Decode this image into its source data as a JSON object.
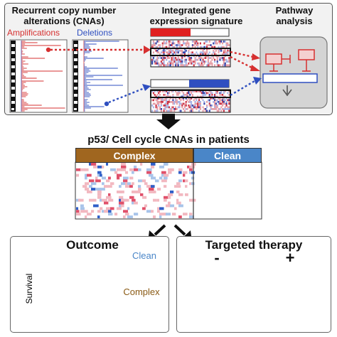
{
  "top": {
    "cna_title_line1": "Recurrent copy number",
    "cna_title_line2": "alterations (CNAs)",
    "amplifications": "Amplifications",
    "deletions": "Deletions",
    "signature_title_line1": "Integrated gene",
    "signature_title_line2": "expression signature",
    "pathway_title_line1": "Pathway",
    "pathway_title_line2": "analysis"
  },
  "middle": {
    "title": "p53/ Cell cycle CNAs in patients",
    "complex_label": "Complex",
    "clean_label": "Clean"
  },
  "outcome": {
    "title": "Outcome",
    "ylabel": "Survival",
    "clean_label": "Clean",
    "complex_label": "Complex"
  },
  "therapy": {
    "title": "Targeted therapy",
    "minus_sign": "-",
    "plus_sign": "+"
  },
  "colors": {
    "amplification": "#d63030",
    "deletion": "#2f4fc0",
    "complex": "#a0661f",
    "clean": "#4a86c8",
    "outcome_complex_curve": "#8a5a14",
    "outcome_clean_curve": "#4a86c8"
  }
}
